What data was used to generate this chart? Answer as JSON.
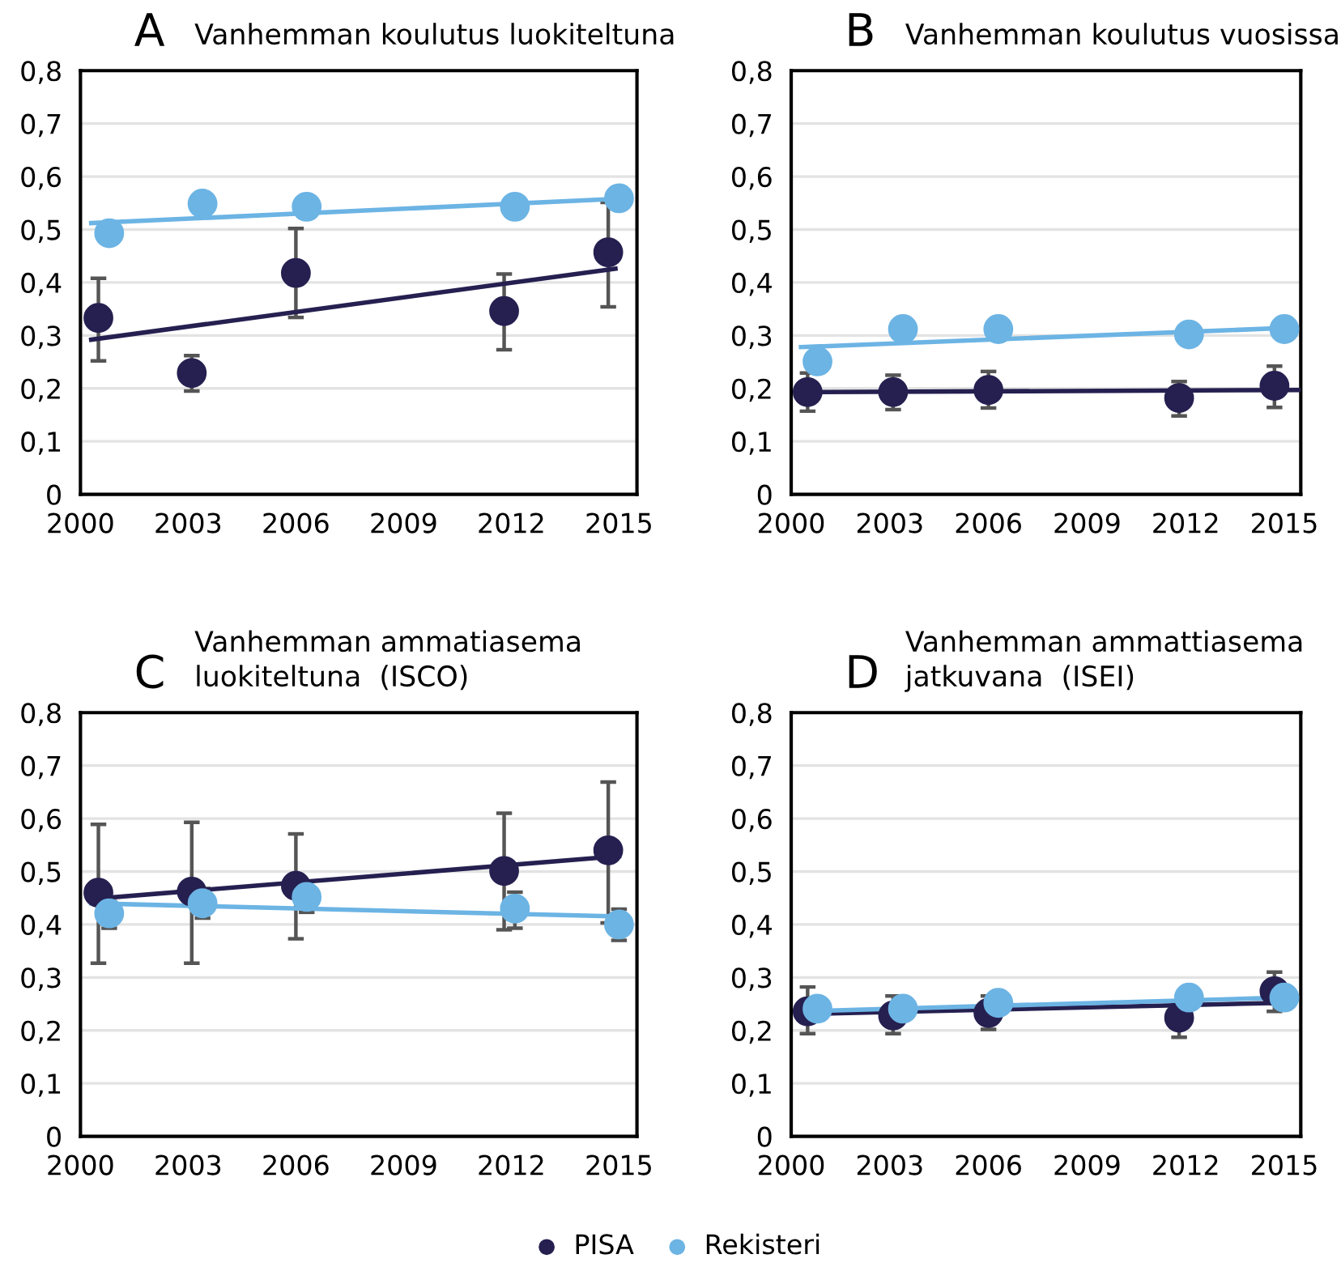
{
  "chart_data": [
    {
      "type": "scatter",
      "title": "A",
      "subtitle": "Vanhemman koulutus luokiteltuna",
      "xlim": [
        2000,
        2015.5
      ],
      "xticks": [
        2000,
        2003,
        2006,
        2009,
        2012,
        2015
      ],
      "ylim": [
        0,
        0.8
      ],
      "yticks": [
        {
          "value": 0,
          "label": "0"
        },
        {
          "value": 0.1,
          "label": "0,1"
        },
        {
          "value": 0.2,
          "label": "0,2"
        },
        {
          "value": 0.3,
          "label": "0,3"
        },
        {
          "value": 0.4,
          "label": "0,4"
        },
        {
          "value": 0.5,
          "label": "0,5"
        },
        {
          "value": 0.6,
          "label": "0,6"
        },
        {
          "value": 0.7,
          "label": "0,7"
        },
        {
          "value": 0.8,
          "label": "0,8"
        }
      ],
      "grid": "y",
      "marker": "circle",
      "legend": "bottom",
      "series": [
        {
          "name": "PISA",
          "color": "#252050",
          "x": [
            2000.5,
            2003.1,
            2006.0,
            2011.8,
            2014.7
          ],
          "values": [
            0.333,
            0.229,
            0.418,
            0.346,
            0.457
          ],
          "errors": [
            [
              0.252,
              0.408
            ],
            [
              0.195,
              0.262
            ],
            [
              0.334,
              0.502
            ],
            [
              0.273,
              0.416
            ],
            [
              0.354,
              0.551
            ]
          ]
        },
        {
          "name": "Rekisteri",
          "color": "#6cb4e4",
          "x": [
            2000.8,
            2003.4,
            2006.3,
            2012.1,
            2015.0
          ],
          "values": [
            0.493,
            0.549,
            0.543,
            0.543,
            0.559
          ]
        },
        {
          "type": "line",
          "marker": "none",
          "color": "#252050",
          "x": [
            2000.3,
            2014.9
          ],
          "values": [
            0.292,
            0.426
          ]
        },
        {
          "type": "line",
          "marker": "none",
          "color": "#6cb4e4",
          "x": [
            2000.3,
            2015.0
          ],
          "values": [
            0.512,
            0.558
          ]
        }
      ]
    },
    {
      "type": "scatter",
      "title": "B",
      "subtitle": "Vanhemman koulutus vuosissa",
      "xlim": [
        2000,
        2015.5
      ],
      "xticks": [
        2000,
        2003,
        2006,
        2009,
        2012,
        2015
      ],
      "ylim": [
        0,
        0.8
      ],
      "yticks": [
        {
          "value": 0,
          "label": "0"
        },
        {
          "value": 0.1,
          "label": "0,1"
        },
        {
          "value": 0.2,
          "label": "0,2"
        },
        {
          "value": 0.3,
          "label": "0,3"
        },
        {
          "value": 0.4,
          "label": "0,4"
        },
        {
          "value": 0.5,
          "label": "0,5"
        },
        {
          "value": 0.6,
          "label": "0,6"
        },
        {
          "value": 0.7,
          "label": "0,7"
        },
        {
          "value": 0.8,
          "label": "0,8"
        }
      ],
      "grid": "y",
      "marker": "circle",
      "legend": "bottom",
      "series": [
        {
          "name": "PISA",
          "color": "#252050",
          "x": [
            2000.5,
            2003.1,
            2006.0,
            2011.8,
            2014.7
          ],
          "values": [
            0.193,
            0.193,
            0.197,
            0.182,
            0.205
          ],
          "errors": [
            [
              0.157,
              0.229
            ],
            [
              0.16,
              0.225
            ],
            [
              0.163,
              0.232
            ],
            [
              0.148,
              0.213
            ],
            [
              0.164,
              0.242
            ]
          ]
        },
        {
          "name": "Rekisteri",
          "color": "#6cb4e4",
          "x": [
            2000.8,
            2003.4,
            2006.3,
            2012.1,
            2015.0
          ],
          "values": [
            0.251,
            0.312,
            0.312,
            0.302,
            0.312
          ]
        },
        {
          "type": "line",
          "marker": "none",
          "color": "#252050",
          "x": [
            2000.3,
            2015.5
          ],
          "values": [
            0.193,
            0.197
          ]
        },
        {
          "type": "line",
          "marker": "none",
          "color": "#6cb4e4",
          "x": [
            2000.3,
            2015.0
          ],
          "values": [
            0.278,
            0.314
          ]
        }
      ]
    },
    {
      "type": "scatter",
      "title": "C",
      "subtitle": "Vanhemman ammatiasema\nluokiteltuna  (ISCO)",
      "xlim": [
        2000,
        2015.5
      ],
      "xticks": [
        2000,
        2003,
        2006,
        2009,
        2012,
        2015
      ],
      "ylim": [
        0,
        0.8
      ],
      "yticks": [
        {
          "value": 0,
          "label": "0"
        },
        {
          "value": 0.1,
          "label": "0,1"
        },
        {
          "value": 0.2,
          "label": "0,2"
        },
        {
          "value": 0.3,
          "label": "0,3"
        },
        {
          "value": 0.4,
          "label": "0,4"
        },
        {
          "value": 0.5,
          "label": "0,5"
        },
        {
          "value": 0.6,
          "label": "0,6"
        },
        {
          "value": 0.7,
          "label": "0,7"
        },
        {
          "value": 0.8,
          "label": "0,8"
        }
      ],
      "grid": "y",
      "marker": "circle",
      "legend": "bottom",
      "series": [
        {
          "name": "PISA",
          "color": "#252050",
          "x": [
            2000.5,
            2003.1,
            2006.0,
            2011.8,
            2014.7
          ],
          "values": [
            0.46,
            0.462,
            0.473,
            0.501,
            0.54
          ],
          "errors": [
            [
              0.327,
              0.589
            ],
            [
              0.327,
              0.593
            ],
            [
              0.373,
              0.571
            ],
            [
              0.39,
              0.61
            ],
            [
              0.403,
              0.669
            ]
          ]
        },
        {
          "name": "Rekisteri",
          "color": "#6cb4e4",
          "x": [
            2000.8,
            2003.4,
            2006.3,
            2012.1,
            2015.0
          ],
          "values": [
            0.421,
            0.44,
            0.452,
            0.43,
            0.4
          ],
          "errors": [
            [
              0.393,
              0.443
            ],
            [
              0.412,
              0.468
            ],
            [
              0.423,
              0.452
            ],
            [
              0.393,
              0.461
            ],
            [
              0.37,
              0.429
            ]
          ]
        },
        {
          "type": "line",
          "marker": "none",
          "color": "#252050",
          "x": [
            2000.3,
            2015.0
          ],
          "values": [
            0.448,
            0.529
          ]
        },
        {
          "type": "line",
          "marker": "none",
          "color": "#6cb4e4",
          "x": [
            2000.3,
            2015.0
          ],
          "values": [
            0.44,
            0.415
          ]
        }
      ]
    },
    {
      "type": "scatter",
      "title": "D",
      "subtitle": "Vanhemman ammattiasema\njatkuvana  (ISEI)",
      "xlim": [
        2000,
        2015.5
      ],
      "xticks": [
        2000,
        2003,
        2006,
        2009,
        2012,
        2015
      ],
      "ylim": [
        0,
        0.8
      ],
      "yticks": [
        {
          "value": 0,
          "label": "0"
        },
        {
          "value": 0.1,
          "label": "0,1"
        },
        {
          "value": 0.2,
          "label": "0,2"
        },
        {
          "value": 0.3,
          "label": "0,3"
        },
        {
          "value": 0.4,
          "label": "0,4"
        },
        {
          "value": 0.5,
          "label": "0,5"
        },
        {
          "value": 0.6,
          "label": "0,6"
        },
        {
          "value": 0.7,
          "label": "0,7"
        },
        {
          "value": 0.8,
          "label": "0,8"
        }
      ],
      "grid": "y",
      "marker": "circle",
      "legend": "bottom",
      "series": [
        {
          "name": "PISA",
          "color": "#252050",
          "x": [
            2000.5,
            2003.1,
            2006.0,
            2011.8,
            2014.7
          ],
          "values": [
            0.236,
            0.228,
            0.233,
            0.224,
            0.274
          ],
          "errors": [
            [
              0.194,
              0.282
            ],
            [
              0.194,
              0.265
            ],
            [
              0.202,
              0.265
            ],
            [
              0.187,
              0.25
            ],
            [
              0.236,
              0.31
            ]
          ]
        },
        {
          "name": "Rekisteri",
          "color": "#6cb4e4",
          "x": [
            2000.8,
            2003.4,
            2006.3,
            2012.1,
            2015.0
          ],
          "values": [
            0.241,
            0.241,
            0.252,
            0.262,
            0.262
          ]
        },
        {
          "type": "line",
          "marker": "none",
          "color": "#252050",
          "x": [
            2000.3,
            2014.8
          ],
          "values": [
            0.231,
            0.252
          ]
        },
        {
          "type": "line",
          "marker": "none",
          "color": "#6cb4e4",
          "x": [
            2000.3,
            2015.0
          ],
          "values": [
            0.236,
            0.262
          ]
        }
      ]
    }
  ]
}
